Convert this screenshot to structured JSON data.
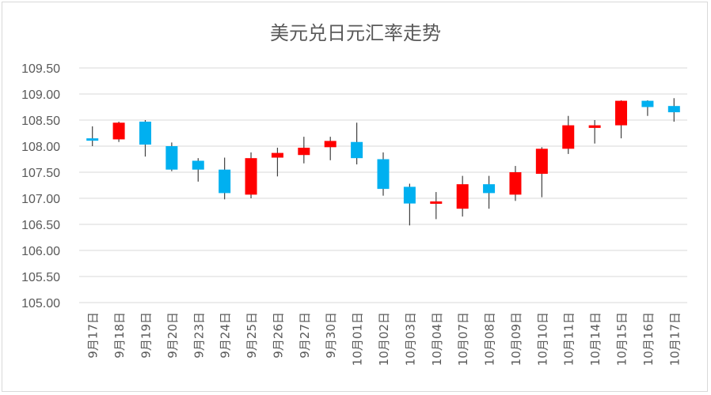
{
  "chart_data": {
    "type": "candlestick",
    "title": "美元兑日元汇率走势",
    "xlabel": "",
    "ylabel": "",
    "ylim": [
      105.0,
      109.5
    ],
    "yticks": [
      "109.50",
      "109.00",
      "108.50",
      "108.00",
      "107.50",
      "107.00",
      "106.50",
      "106.00",
      "105.50",
      "105.00"
    ],
    "grid": true,
    "colors": {
      "up": "#ff0000",
      "down": "#00b0f0",
      "wick": "#404040",
      "grid": "#d9d9d9",
      "axis_text": "#595959"
    },
    "categories": [
      "9月17日",
      "9月18日",
      "9月19日",
      "9月20日",
      "9月23日",
      "9月24日",
      "9月25日",
      "9月26日",
      "9月27日",
      "9月30日",
      "10月01日",
      "10月02日",
      "10月03日",
      "10月04日",
      "10月07日",
      "10月08日",
      "10月09日",
      "10月10日",
      "10月11日",
      "10月14日",
      "10月15日",
      "10月16日",
      "10月17日"
    ],
    "ohlc": [
      {
        "open": 108.15,
        "high": 108.38,
        "low": 108.0,
        "close": 108.12
      },
      {
        "open": 108.13,
        "high": 108.47,
        "low": 108.08,
        "close": 108.45
      },
      {
        "open": 108.47,
        "high": 108.5,
        "low": 107.8,
        "close": 108.03
      },
      {
        "open": 108.0,
        "high": 108.07,
        "low": 107.52,
        "close": 107.55
      },
      {
        "open": 107.72,
        "high": 107.77,
        "low": 107.32,
        "close": 107.55
      },
      {
        "open": 107.55,
        "high": 107.78,
        "low": 106.98,
        "close": 107.1
      },
      {
        "open": 107.07,
        "high": 107.88,
        "low": 107.0,
        "close": 107.77
      },
      {
        "open": 107.78,
        "high": 107.97,
        "low": 107.42,
        "close": 107.87
      },
      {
        "open": 107.83,
        "high": 108.18,
        "low": 107.67,
        "close": 107.97
      },
      {
        "open": 107.98,
        "high": 108.18,
        "low": 107.73,
        "close": 108.1
      },
      {
        "open": 108.08,
        "high": 108.45,
        "low": 107.65,
        "close": 107.77
      },
      {
        "open": 107.75,
        "high": 107.88,
        "low": 107.05,
        "close": 107.18
      },
      {
        "open": 107.22,
        "high": 107.28,
        "low": 106.48,
        "close": 106.9
      },
      {
        "open": 106.92,
        "high": 107.12,
        "low": 106.6,
        "close": 106.94
      },
      {
        "open": 106.8,
        "high": 107.43,
        "low": 106.65,
        "close": 107.27
      },
      {
        "open": 107.27,
        "high": 107.43,
        "low": 106.8,
        "close": 107.1
      },
      {
        "open": 107.07,
        "high": 107.62,
        "low": 106.95,
        "close": 107.5
      },
      {
        "open": 107.47,
        "high": 107.98,
        "low": 107.02,
        "close": 107.95
      },
      {
        "open": 107.95,
        "high": 108.58,
        "low": 107.85,
        "close": 108.4
      },
      {
        "open": 108.35,
        "high": 108.5,
        "low": 108.05,
        "close": 108.4
      },
      {
        "open": 108.4,
        "high": 108.88,
        "low": 108.15,
        "close": 108.87
      },
      {
        "open": 108.87,
        "high": 108.88,
        "low": 108.58,
        "close": 108.75
      },
      {
        "open": 108.77,
        "high": 108.92,
        "low": 108.47,
        "close": 108.65
      }
    ]
  }
}
